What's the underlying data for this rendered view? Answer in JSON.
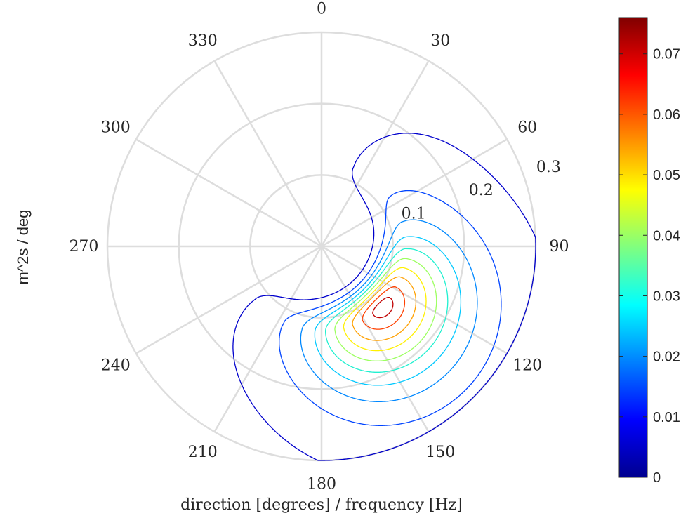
{
  "chart_data": {
    "type": "polar-contour",
    "xlabel": "direction [degrees] / frequency [Hz]",
    "ylabel": "m^2s / deg",
    "angle_ticks": [
      "0",
      "30",
      "60",
      "90",
      "120",
      "150",
      "180",
      "210",
      "240",
      "270",
      "300",
      "330"
    ],
    "radial_ticks": [
      "0.1",
      "0.2",
      "0.3"
    ],
    "radial_max": 0.3,
    "peak": {
      "direction_deg": 135,
      "frequency_hz": 0.12,
      "value": 0.076
    },
    "contour_levels": [
      0.004,
      0.012,
      0.02,
      0.028,
      0.036,
      0.044,
      0.052,
      0.06,
      0.068,
      0.074
    ],
    "contour_colors": [
      "#0000cc",
      "#0044ff",
      "#0088ff",
      "#00c8ff",
      "#20f0d0",
      "#9cff60",
      "#fff000",
      "#ffa000",
      "#ff4000",
      "#c00000"
    ],
    "colorbar": {
      "range": [
        0,
        0.076
      ],
      "tick_labels": [
        "0",
        "0.01",
        "0.02",
        "0.03",
        "0.04",
        "0.05",
        "0.06",
        "0.07"
      ],
      "tick_values": [
        0,
        0.01,
        0.02,
        0.03,
        0.04,
        0.05,
        0.06,
        0.07
      ],
      "colormap": "jet"
    },
    "grid": true
  }
}
